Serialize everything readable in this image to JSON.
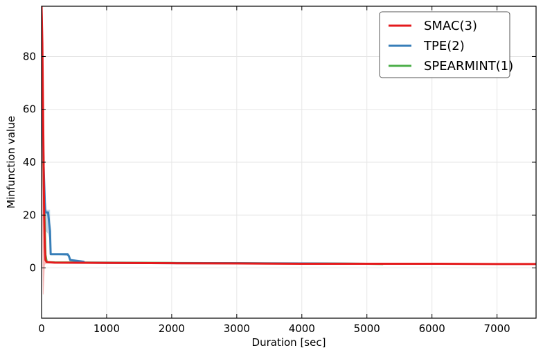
{
  "chart_data": {
    "type": "line",
    "title": "",
    "xlabel": "Duration [sec]",
    "ylabel": "Minfunction value",
    "xlim": [
      0,
      7600
    ],
    "ylim": [
      -19,
      99
    ],
    "xticks": [
      0,
      1000,
      2000,
      3000,
      4000,
      5000,
      6000,
      7000
    ],
    "yticks": [
      0,
      20,
      40,
      60,
      80
    ],
    "grid": true,
    "legend_position": "top-right",
    "series": [
      {
        "name": "SMAC(3)",
        "color": "#e41a1c",
        "x": [
          0,
          12,
          25,
          40,
          50,
          60,
          80,
          200,
          1000,
          2000,
          3000,
          4000,
          5000,
          6000,
          7000,
          7600
        ],
        "y": [
          99,
          85,
          55,
          20,
          8,
          3,
          2.2,
          2.0,
          1.9,
          1.8,
          1.7,
          1.6,
          1.6,
          1.6,
          1.5,
          1.5
        ],
        "band": {
          "x": [
            0,
            10,
            20,
            30,
            40,
            50,
            60,
            80
          ],
          "upper": [
            99,
            99,
            95,
            70,
            40,
            15,
            5,
            3
          ],
          "lower": [
            60,
            20,
            -10,
            -10,
            -5,
            1,
            1.5,
            1.8
          ]
        }
      },
      {
        "name": "TPE(2)",
        "color": "#377eb8",
        "x": [
          0,
          15,
          30,
          50,
          60,
          100,
          130,
          140,
          200,
          300,
          400,
          420,
          440,
          600,
          650,
          660,
          1000,
          2000,
          3000,
          4000,
          5000,
          6000,
          6100
        ],
        "y": [
          80,
          60,
          40,
          25,
          21,
          21,
          14,
          5.2,
          5.2,
          5.2,
          5.2,
          4.5,
          3,
          2.5,
          2.3,
          2.0,
          1.9,
          1.8,
          1.8,
          1.7,
          1.6,
          1.6,
          1.6
        ],
        "band": {
          "x": [
            0,
            30,
            60,
            100,
            130,
            140,
            200,
            420,
            440,
            650,
            660
          ],
          "upper": [
            85,
            50,
            22,
            22,
            22,
            5.5,
            5.5,
            5.5,
            3.5,
            2.8,
            2.1
          ],
          "lower": [
            70,
            30,
            14,
            13,
            10,
            5.0,
            5.0,
            4.5,
            2.5,
            2.0,
            1.9
          ]
        }
      },
      {
        "name": "SPEARMINT(1)",
        "color": "#4daf4a",
        "x": [
          0,
          10,
          25,
          40,
          60,
          80,
          200,
          1000,
          2000,
          3000,
          4000,
          5000,
          5250
        ],
        "y": [
          75,
          60,
          45,
          25,
          5,
          2.2,
          2.1,
          2.0,
          1.9,
          1.8,
          1.7,
          1.6,
          1.5
        ],
        "band": {
          "x": [
            0,
            20,
            40,
            60,
            80
          ],
          "upper": [
            80,
            65,
            40,
            10,
            2.5
          ],
          "lower": [
            70,
            40,
            15,
            2,
            1.9
          ]
        }
      }
    ]
  }
}
